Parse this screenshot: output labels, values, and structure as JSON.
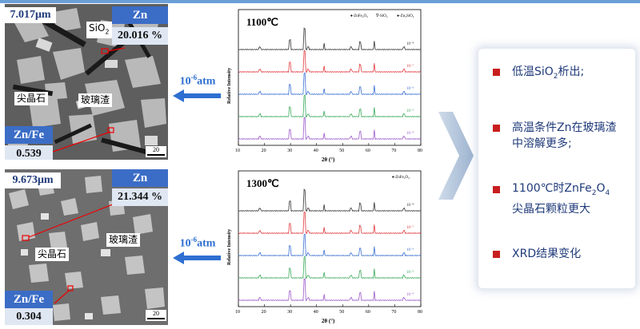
{
  "top_panel": {
    "size_label": "7.017μm",
    "sio2_label": "SiO",
    "sio2_sub": "2",
    "spinel_label": "尖晶石",
    "glass_label": "玻璃渣",
    "zn_header": "Zn",
    "zn_value": "20.016 %",
    "znfe_header": "Zn/Fe",
    "znfe_value": "0.539",
    "scale_value": "20"
  },
  "bottom_panel": {
    "size_label": "9.673μm",
    "spinel_label": "尖晶石",
    "glass_label": "玻璃渣",
    "zn_header": "Zn",
    "zn_value": "21.344 %",
    "znfe_header": "Zn/Fe",
    "znfe_value": "0.304",
    "scale_value": "20"
  },
  "arrows": [
    {
      "text_base": "10",
      "text_exp": "-6",
      "text_unit": "atm"
    },
    {
      "text_base": "10",
      "text_exp": "-6",
      "text_unit": "atm"
    }
  ],
  "xrd_top": {
    "temperature": "1100℃",
    "legend": [
      "♦-ZnFe₂O₄",
      "∇-SiO₂",
      "●-Zn₂SiO₄"
    ],
    "ylabel": "Relative Intensity",
    "xlabel": "2θ (°)",
    "xticks": [
      "10",
      "20",
      "30",
      "40",
      "50",
      "60",
      "70",
      "80"
    ],
    "curves": [
      {
        "label": "10⁻⁸",
        "color": "#333333"
      },
      {
        "label": "10⁻⁷",
        "color": "#e0393e"
      },
      {
        "label": "10⁻⁶",
        "color": "#3a6fd1"
      },
      {
        "label": "10⁻⁵",
        "color": "#3aa85a"
      },
      {
        "label": "10⁻⁴",
        "color": "#9b59c9"
      }
    ]
  },
  "xrd_bottom": {
    "temperature": "1300℃",
    "legend": [
      "♦-ZnFe₂O₄"
    ],
    "ylabel": "Relative Intensity",
    "xlabel": "2θ (°)",
    "xticks": [
      "10",
      "20",
      "30",
      "40",
      "50",
      "60",
      "70",
      "80"
    ],
    "curves": [
      {
        "label": "10⁻⁸",
        "color": "#333333"
      },
      {
        "label": "10⁻⁷",
        "color": "#e0393e"
      },
      {
        "label": "10⁻⁶",
        "color": "#3a6fd1"
      },
      {
        "label": "10⁻⁵",
        "color": "#3aa85a"
      },
      {
        "label": "10⁻⁴",
        "color": "#9b59c9"
      }
    ]
  },
  "summary": {
    "item1_pre": "低温SiO",
    "item1_sub": "2",
    "item1_post": "析出;",
    "item2": "高温条件Zn在玻璃渣中溶解更多;",
    "item3_line1_pre": "1100℃时ZnFe",
    "item3_sub1": "2",
    "item3_mid": "O",
    "item3_sub2": "4",
    "item3_line2": "尖晶石颗粒更大",
    "item4": "XRD结果变化"
  },
  "colors": {
    "accent_blue": "#3b6dc6",
    "arrow_blue": "#2e6fd1",
    "bullet_red": "#c81e1e",
    "text_navy": "#1f3a7a"
  }
}
